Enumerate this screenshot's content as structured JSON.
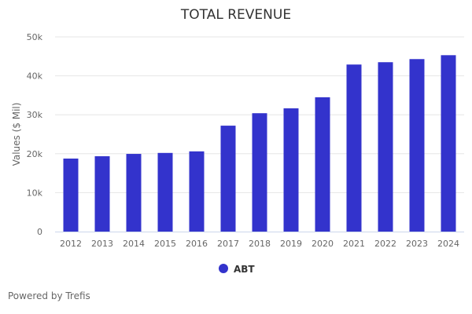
{
  "chart_data": {
    "type": "bar",
    "title": "TOTAL REVENUE",
    "xlabel": "",
    "ylabel": "Values ($ Mil)",
    "categories": [
      "2012",
      "2013",
      "2014",
      "2015",
      "2016",
      "2017",
      "2018",
      "2019",
      "2020",
      "2021",
      "2022",
      "2023",
      "2024"
    ],
    "series": [
      {
        "name": "ABT",
        "color": "#3333cc",
        "values": [
          18750,
          19350,
          19950,
          20200,
          20600,
          27200,
          30400,
          31650,
          34500,
          42900,
          43500,
          44300,
          45300
        ]
      }
    ],
    "ylim": [
      0,
      50000
    ],
    "yticks": [
      0,
      10000,
      20000,
      30000,
      40000,
      50000
    ],
    "ytick_labels": [
      "0",
      "10k",
      "20k",
      "30k",
      "40k",
      "50k"
    ],
    "grid": true,
    "legend": "bottom-center"
  },
  "footer": {
    "credit": "Powered by Trefis"
  }
}
